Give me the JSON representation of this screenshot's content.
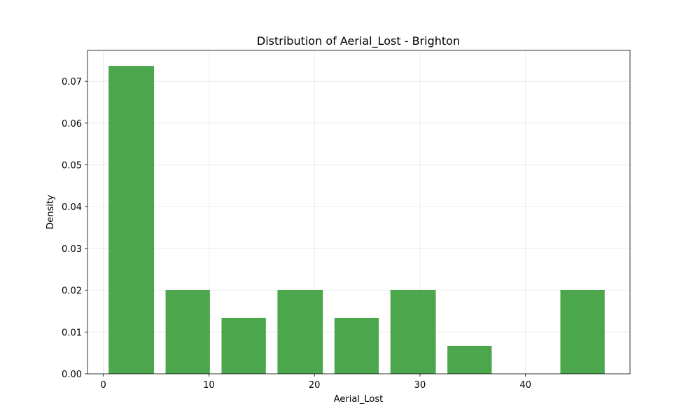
{
  "chart_data": {
    "type": "bar",
    "title": "Distribution of Aerial_Lost - Brighton",
    "xlabel": "Aerial_Lost",
    "ylabel": "Density",
    "xlim": [
      -1.5,
      49.9
    ],
    "ylim": [
      0,
      0.0774
    ],
    "xticks": [
      0,
      10,
      20,
      30,
      40
    ],
    "yticks": [
      0.0,
      0.01,
      0.02,
      0.03,
      0.04,
      0.05,
      0.06,
      0.07
    ],
    "ytick_labels": [
      "0.00",
      "0.01",
      "0.02",
      "0.03",
      "0.04",
      "0.05",
      "0.06",
      "0.07"
    ],
    "grid": true,
    "bar_color": "#4ca64c",
    "bins": [
      {
        "x0": 0.5,
        "x1": 4.8,
        "value": 0.0737
      },
      {
        "x0": 5.9,
        "x1": 10.1,
        "value": 0.0201
      },
      {
        "x0": 11.2,
        "x1": 15.4,
        "value": 0.0134
      },
      {
        "x0": 16.5,
        "x1": 20.8,
        "value": 0.0201
      },
      {
        "x0": 21.9,
        "x1": 26.1,
        "value": 0.0134
      },
      {
        "x0": 27.2,
        "x1": 31.5,
        "value": 0.0201
      },
      {
        "x0": 32.6,
        "x1": 36.8,
        "value": 0.0067
      },
      {
        "x0": 37.9,
        "x1": 42.2,
        "value": 0.0
      },
      {
        "x0": 43.3,
        "x1": 47.5,
        "value": 0.0201
      }
    ]
  }
}
